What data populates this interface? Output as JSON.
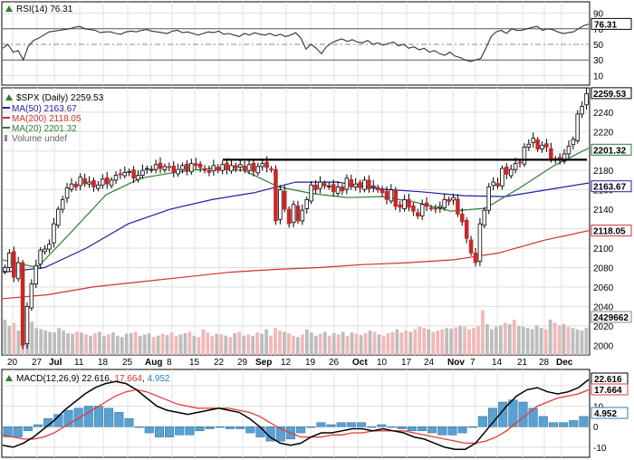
{
  "chart_data": {
    "type": "candlestick",
    "symbol": "$SPX",
    "main": {
      "title": "$SPX (Daily) 2259.53",
      "last_price": 2259.53,
      "legend": [
        {
          "label": "MA(50) 2163.67",
          "color": "#1f1fa0"
        },
        {
          "label": "MA(200) 2118.05",
          "color": "#d32f2f"
        },
        {
          "label": "MA(20) 2201.32",
          "color": "#2e7d32"
        },
        {
          "label": "Volume undef",
          "color": "#666666"
        }
      ],
      "right_box_values": [
        "2259.53",
        "2201.32",
        "2163.67",
        "2118.05",
        "2429662"
      ],
      "ylim": [
        1990,
        2265
      ],
      "y_ticks": [
        "2240",
        "2220",
        "2200",
        "2180",
        "2160",
        "2140",
        "2120",
        "2100",
        "2080",
        "2060",
        "2040",
        "2020",
        "2000"
      ],
      "resistance_level": 2191,
      "ma50": [
        2075,
        2080,
        2100,
        2125,
        2140,
        2150,
        2157,
        2168,
        2168,
        2161,
        2158,
        2154,
        2153,
        2160,
        2167
      ],
      "ma200": [
        2048,
        2052,
        2060,
        2065,
        2070,
        2075,
        2078,
        2080,
        2083,
        2085,
        2088,
        2095,
        2108,
        2118
      ],
      "ma20": [
        2088,
        2080,
        2117,
        2155,
        2172,
        2178,
        2182,
        2180,
        2163,
        2156,
        2152,
        2153,
        2147,
        2138,
        2141,
        2162,
        2185,
        2203
      ],
      "closes": [
        2080,
        2095,
        2070,
        2085,
        2000,
        2040,
        2063,
        2082,
        2098,
        2099,
        2104,
        2125,
        2140,
        2150,
        2162,
        2166,
        2163,
        2173,
        2166,
        2168,
        2163,
        2165,
        2171,
        2166,
        2170,
        2175,
        2176,
        2178,
        2179,
        2172,
        2175,
        2180,
        2182,
        2181,
        2186,
        2182,
        2184,
        2183,
        2178,
        2181,
        2185,
        2180,
        2187,
        2185,
        2183,
        2180,
        2178,
        2185,
        2180,
        2186,
        2181,
        2185,
        2182,
        2186,
        2180,
        2186,
        2179,
        2184,
        2187,
        2183,
        2181,
        2128,
        2160,
        2140,
        2125,
        2145,
        2128,
        2139,
        2150,
        2165,
        2160,
        2168,
        2164,
        2164,
        2158,
        2163,
        2159,
        2172,
        2163,
        2166,
        2162,
        2170,
        2161,
        2164,
        2160,
        2157,
        2150,
        2160,
        2143,
        2142,
        2150,
        2142,
        2138,
        2133,
        2145,
        2143,
        2141,
        2140,
        2143,
        2150,
        2148,
        2152,
        2135,
        2127,
        2110,
        2095,
        2085,
        2125,
        2139,
        2163,
        2168,
        2164,
        2182,
        2176,
        2181,
        2187,
        2188,
        2204,
        2207,
        2213,
        2202,
        2206,
        2204,
        2191,
        2192,
        2191,
        2197,
        2205,
        2212,
        2238,
        2246,
        2259
      ],
      "volume": [
        55,
        45,
        50,
        38,
        110,
        70,
        52,
        42,
        40,
        38,
        36,
        35,
        42,
        38,
        34,
        33,
        36,
        35,
        32,
        30,
        34,
        36,
        30,
        32,
        35,
        30,
        28,
        33,
        34,
        36,
        30,
        32,
        34,
        28,
        30,
        33,
        31,
        35,
        30,
        32,
        34,
        36,
        30,
        28,
        40,
        35,
        30,
        33,
        32,
        30,
        28,
        34,
        36,
        30,
        32,
        30,
        35,
        33,
        40,
        30,
        42,
        38,
        36,
        34,
        30,
        28,
        32,
        40,
        35,
        30,
        33,
        36,
        30,
        34,
        32,
        36,
        30,
        35,
        33,
        31,
        34,
        38,
        36,
        32,
        30,
        34,
        36,
        40,
        35,
        38,
        36,
        40,
        44,
        42,
        40,
        36,
        38,
        40,
        42,
        41,
        43,
        45,
        44,
        40,
        42,
        45,
        70,
        48,
        40,
        44,
        46,
        50,
        48,
        55,
        45,
        44,
        42,
        40,
        46,
        42,
        40,
        55,
        50,
        46,
        48,
        44,
        42,
        40,
        38,
        42
      ]
    },
    "x_labels": [
      "20",
      "27",
      "Jul",
      "11",
      "18",
      "25",
      "Aug",
      "8",
      "15",
      "22",
      "29",
      "Sep",
      "12",
      "19",
      "26",
      "Oct",
      "10",
      "17",
      "24",
      "Nov",
      "7",
      "14",
      "21",
      "28",
      "Dec"
    ],
    "rsi": {
      "title": "RSI(14) 76.31",
      "value": 76.31,
      "ylim": [
        0,
        100
      ],
      "y_ticks": [
        "90",
        "70",
        "50",
        "30",
        "10"
      ],
      "box_value": "76.31",
      "values": [
        45,
        50,
        40,
        42,
        30,
        48,
        55,
        58,
        62,
        66,
        67,
        68,
        69,
        70,
        72,
        73,
        70,
        69,
        68,
        65,
        66,
        66,
        64,
        63,
        66,
        67,
        66,
        68,
        69,
        67,
        66,
        65,
        64,
        67,
        68,
        65,
        66,
        64,
        62,
        64,
        66,
        65,
        67,
        63,
        64,
        62,
        60,
        64,
        62,
        65,
        63,
        62,
        64,
        61,
        63,
        60,
        62,
        65,
        58,
        44,
        50,
        45,
        38,
        47,
        52,
        55,
        57,
        54,
        56,
        53,
        52,
        55,
        50,
        52,
        49,
        51,
        53,
        48,
        50,
        45,
        47,
        43,
        45,
        40,
        42,
        38,
        36,
        40,
        35,
        33,
        30,
        28,
        30,
        32,
        45,
        60,
        66,
        68,
        64,
        70,
        68,
        68,
        70,
        72,
        73,
        68,
        70,
        69,
        66,
        64,
        65,
        66,
        70,
        74,
        76
      ]
    },
    "macd": {
      "title": "MACD(12,26,9) 22.616, 17.664, 4.952",
      "macd_label": "MACD(12,26,9)",
      "macd_value": "22.616",
      "signal_value": "17.664",
      "hist_value": "4.952",
      "ylim": [
        -14,
        27
      ],
      "y_ticks": [
        "20",
        "10",
        "0",
        "-10"
      ],
      "macd": [
        -9,
        -10,
        -8,
        -5,
        -1,
        3,
        8,
        12,
        16,
        19,
        21,
        22,
        21,
        18,
        14,
        10,
        8,
        7,
        6,
        7,
        8,
        9,
        8,
        7,
        4,
        0,
        -5,
        -8,
        -9,
        -8,
        -5,
        -3,
        -3,
        -2,
        -1,
        -1,
        -2,
        -1,
        -2,
        -3,
        -5,
        -6,
        -8,
        -10,
        -11,
        -11,
        -8,
        -2,
        4,
        10,
        15,
        18,
        19,
        17,
        16,
        17,
        19,
        23
      ],
      "signal": [
        -4,
        -5,
        -6,
        -6,
        -5,
        -3,
        0,
        3,
        6,
        9,
        12,
        15,
        17,
        18,
        17,
        15,
        13,
        11,
        10,
        9,
        9,
        9,
        9,
        8,
        7,
        5,
        2,
        -1,
        -3,
        -5,
        -5,
        -5,
        -4,
        -4,
        -3,
        -3,
        -2,
        -2,
        -2,
        -2,
        -3,
        -4,
        -5,
        -6,
        -7,
        -8,
        -8,
        -7,
        -5,
        -2,
        2,
        6,
        10,
        12,
        14,
        15,
        16,
        18
      ],
      "hist": [
        -5,
        -5,
        -2,
        1,
        4,
        6,
        8,
        9,
        10,
        10,
        9,
        7,
        4,
        0,
        -3,
        -5,
        -5,
        -4,
        -4,
        -2,
        -1,
        0,
        -1,
        -1,
        -3,
        -5,
        -7,
        -7,
        -6,
        -3,
        0,
        2,
        1,
        2,
        2,
        2,
        0,
        1,
        0,
        -1,
        -2,
        -2,
        -3,
        -4,
        -4,
        -3,
        0,
        5,
        9,
        12,
        13,
        12,
        9,
        5,
        2,
        2,
        3,
        5
      ]
    }
  }
}
